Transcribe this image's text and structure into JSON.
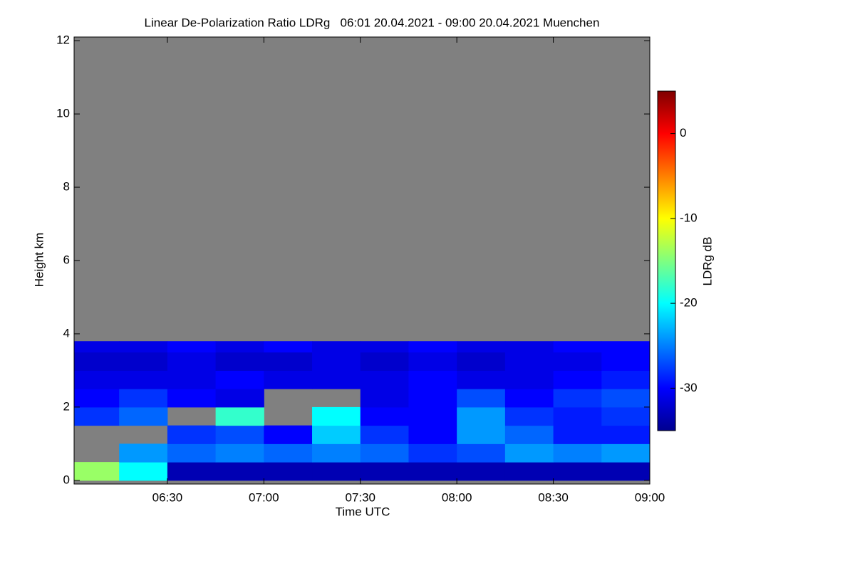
{
  "chart_data": {
    "type": "heatmap",
    "title": "Linear De-Polarization Ratio LDRg   06:01 20.04.2021 - 09:00 20.04.2021 Muenchen",
    "x_label": "Time UTC",
    "y_label": "Height km",
    "xlim": [
      "06:01",
      "09:00"
    ],
    "xticks": [
      "06:30",
      "07:00",
      "07:30",
      "08:00",
      "08:30",
      "09:00"
    ],
    "ylim": [
      -0.1,
      12.1
    ],
    "yticks": [
      0,
      2,
      4,
      6,
      8,
      10,
      12
    ],
    "x": [
      "06:00",
      "06:15",
      "06:30",
      "06:45",
      "07:00",
      "07:15",
      "07:30",
      "07:45",
      "08:00",
      "08:15",
      "08:30",
      "08:45",
      "09:00"
    ],
    "y": [
      0,
      0.5,
      1,
      1.5,
      2,
      2.5,
      3,
      3.5,
      3.8
    ],
    "values": [
      [
        -14,
        -20,
        -33,
        -33,
        -33,
        -33,
        -33,
        -33,
        -33,
        -33,
        -33,
        -33
      ],
      [
        null,
        -24,
        -26,
        -25,
        -26,
        -25,
        -26,
        -28,
        -27,
        -24,
        -25,
        -24
      ],
      [
        null,
        null,
        -28,
        -27,
        -30,
        -22,
        -28,
        -30,
        -24,
        -26,
        -29,
        -29
      ],
      [
        -28,
        -26,
        null,
        -18,
        null,
        -20,
        -30,
        -30,
        -24,
        -28,
        -29,
        -28
      ],
      [
        -30,
        -28,
        -30,
        -31,
        null,
        null,
        -31,
        -30,
        -27,
        -30,
        -28,
        -27
      ],
      [
        -31,
        -31,
        -31,
        -30,
        -31,
        -31,
        -31,
        -30,
        -31,
        -31,
        -30,
        -29
      ],
      [
        -32,
        -32,
        -31,
        -32,
        -32,
        -31,
        -32,
        -31,
        -32,
        -31,
        -31,
        -30
      ],
      [
        -31,
        -31,
        -30,
        -31,
        -30,
        -31,
        -31,
        -30,
        -31,
        -31,
        -30,
        -30
      ]
    ],
    "missing_color": "#808080",
    "colormap": "jet",
    "clim": [
      -35,
      5
    ],
    "colorbar_ticks": [
      0,
      -10,
      -20,
      -30
    ],
    "colorbar_label": "LDRg dB"
  }
}
